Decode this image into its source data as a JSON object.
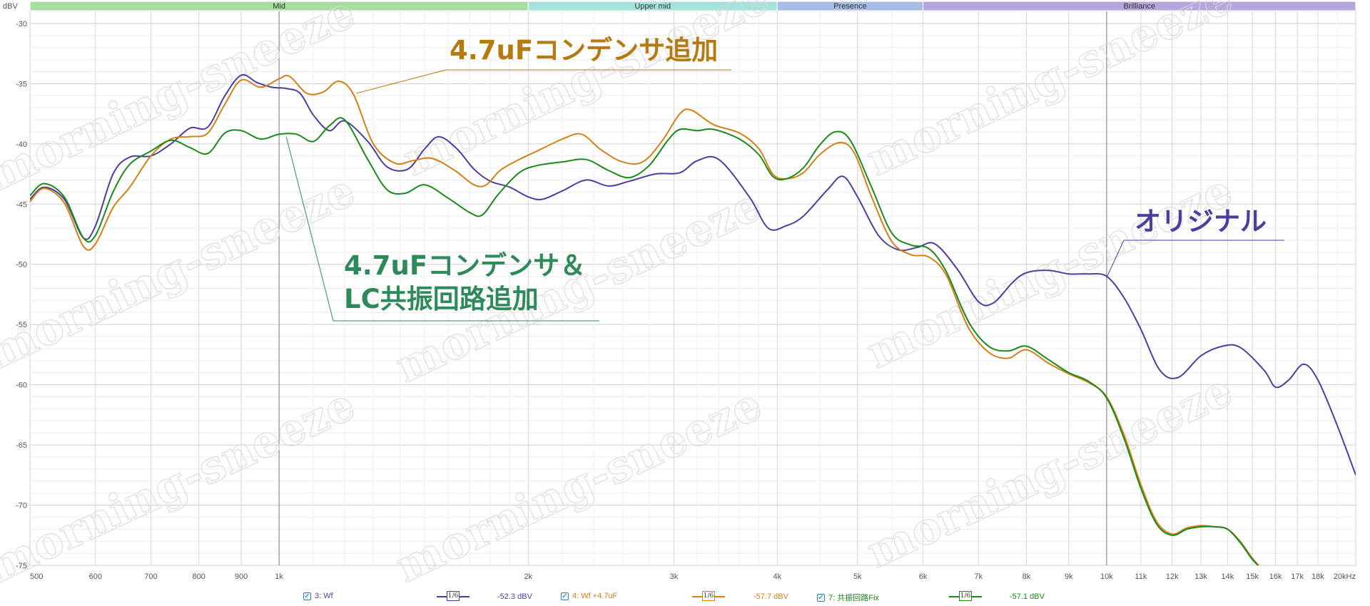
{
  "chart_data": {
    "type": "line",
    "y_unit_label": "dBV",
    "x_scale": "log",
    "xlim": [
      500,
      20000
    ],
    "ylim": [
      -75,
      -29
    ],
    "y_ticks": [
      -30,
      -35,
      -40,
      -45,
      -50,
      -55,
      -60,
      -65,
      -70,
      -75
    ],
    "x_ticks": [
      {
        "v": 500,
        "t": "500"
      },
      {
        "v": 600,
        "t": "600"
      },
      {
        "v": 700,
        "t": "700"
      },
      {
        "v": 800,
        "t": "800"
      },
      {
        "v": 900,
        "t": "900"
      },
      {
        "v": 1000,
        "t": "1k"
      },
      {
        "v": 2000,
        "t": "2k"
      },
      {
        "v": 3000,
        "t": "3k"
      },
      {
        "v": 4000,
        "t": "4k"
      },
      {
        "v": 5000,
        "t": "5k"
      },
      {
        "v": 6000,
        "t": "6k"
      },
      {
        "v": 7000,
        "t": "7k"
      },
      {
        "v": 8000,
        "t": "8k"
      },
      {
        "v": 9000,
        "t": "9k"
      },
      {
        "v": 10000,
        "t": "10k"
      },
      {
        "v": 11000,
        "t": "11k"
      },
      {
        "v": 12000,
        "t": "12k"
      },
      {
        "v": 13000,
        "t": "13k"
      },
      {
        "v": 14000,
        "t": "14k"
      },
      {
        "v": 15000,
        "t": "15k"
      },
      {
        "v": 16000,
        "t": "16k"
      },
      {
        "v": 17000,
        "t": "17k"
      },
      {
        "v": 18000,
        "t": "18k"
      },
      {
        "v": 20000,
        "t": "20kHz"
      }
    ],
    "bands": [
      {
        "label": "Mid",
        "from": 500,
        "to": 2000,
        "color": "#a8dea0"
      },
      {
        "label": "Upper mid",
        "from": 2000,
        "to": 4000,
        "color": "#a4e3dc"
      },
      {
        "label": "Presence",
        "from": 4000,
        "to": 6000,
        "color": "#a9bce3"
      },
      {
        "label": "Brilliance",
        "from": 6000,
        "to": 20000,
        "color": "#b7a6d9"
      }
    ],
    "grid": true,
    "series": [
      {
        "name": "3: Wf",
        "color": "#4a3f9f",
        "points": [
          [
            500,
            -44.6
          ],
          [
            520,
            -43.6
          ],
          [
            550,
            -44.6
          ],
          [
            580,
            -47.8
          ],
          [
            600,
            -46.8
          ],
          [
            630,
            -42.5
          ],
          [
            660,
            -41.1
          ],
          [
            700,
            -41.0
          ],
          [
            740,
            -40.0
          ],
          [
            780,
            -38.7
          ],
          [
            820,
            -38.6
          ],
          [
            860,
            -36.0
          ],
          [
            900,
            -34.3
          ],
          [
            940,
            -34.9
          ],
          [
            980,
            -35.3
          ],
          [
            1020,
            -35.4
          ],
          [
            1060,
            -35.8
          ],
          [
            1100,
            -37.6
          ],
          [
            1150,
            -38.9
          ],
          [
            1200,
            -38.1
          ],
          [
            1280,
            -39.8
          ],
          [
            1350,
            -41.9
          ],
          [
            1430,
            -42.1
          ],
          [
            1500,
            -40.4
          ],
          [
            1560,
            -39.4
          ],
          [
            1640,
            -40.4
          ],
          [
            1720,
            -42.1
          ],
          [
            1800,
            -43.1
          ],
          [
            1900,
            -43.6
          ],
          [
            2000,
            -44.4
          ],
          [
            2080,
            -44.6
          ],
          [
            2200,
            -43.9
          ],
          [
            2350,
            -43.0
          ],
          [
            2500,
            -43.5
          ],
          [
            2650,
            -43.1
          ],
          [
            2850,
            -42.5
          ],
          [
            3050,
            -42.4
          ],
          [
            3200,
            -41.4
          ],
          [
            3400,
            -41.3
          ],
          [
            3700,
            -44.4
          ],
          [
            3900,
            -47.0
          ],
          [
            4100,
            -46.8
          ],
          [
            4300,
            -46.0
          ],
          [
            4600,
            -43.8
          ],
          [
            4800,
            -42.7
          ],
          [
            5000,
            -44.4
          ],
          [
            5300,
            -47.6
          ],
          [
            5600,
            -48.8
          ],
          [
            5900,
            -48.6
          ],
          [
            6200,
            -48.3
          ],
          [
            6600,
            -50.4
          ],
          [
            7000,
            -53.1
          ],
          [
            7300,
            -53.2
          ],
          [
            7700,
            -51.5
          ],
          [
            8000,
            -50.7
          ],
          [
            8500,
            -50.5
          ],
          [
            9000,
            -50.8
          ],
          [
            9500,
            -50.8
          ],
          [
            10000,
            -51.0
          ],
          [
            10500,
            -52.8
          ],
          [
            11000,
            -55.4
          ],
          [
            11600,
            -58.8
          ],
          [
            12200,
            -59.4
          ],
          [
            13000,
            -57.6
          ],
          [
            13800,
            -56.8
          ],
          [
            14500,
            -56.9
          ],
          [
            15500,
            -58.8
          ],
          [
            16000,
            -60.2
          ],
          [
            16600,
            -59.6
          ],
          [
            17300,
            -58.3
          ],
          [
            18000,
            -59.6
          ],
          [
            19000,
            -63.4
          ],
          [
            20000,
            -67.5
          ]
        ]
      },
      {
        "name": "4: Wf +4.7uF",
        "color": "#d57f16",
        "points": [
          [
            500,
            -44.8
          ],
          [
            520,
            -43.7
          ],
          [
            550,
            -44.9
          ],
          [
            580,
            -48.5
          ],
          [
            600,
            -48.3
          ],
          [
            630,
            -45.3
          ],
          [
            660,
            -43.6
          ],
          [
            700,
            -41.0
          ],
          [
            740,
            -39.6
          ],
          [
            780,
            -39.4
          ],
          [
            820,
            -39.1
          ],
          [
            860,
            -36.7
          ],
          [
            900,
            -34.7
          ],
          [
            950,
            -35.3
          ],
          [
            1000,
            -34.6
          ],
          [
            1030,
            -34.4
          ],
          [
            1080,
            -35.8
          ],
          [
            1130,
            -35.7
          ],
          [
            1180,
            -34.8
          ],
          [
            1230,
            -35.9
          ],
          [
            1300,
            -40.0
          ],
          [
            1380,
            -41.6
          ],
          [
            1450,
            -41.4
          ],
          [
            1530,
            -41.2
          ],
          [
            1630,
            -42.2
          ],
          [
            1720,
            -43.4
          ],
          [
            1780,
            -43.4
          ],
          [
            1850,
            -42.2
          ],
          [
            1950,
            -41.3
          ],
          [
            2050,
            -40.6
          ],
          [
            2200,
            -39.6
          ],
          [
            2320,
            -39.2
          ],
          [
            2450,
            -40.5
          ],
          [
            2600,
            -41.5
          ],
          [
            2750,
            -41.5
          ],
          [
            2900,
            -39.8
          ],
          [
            3050,
            -37.5
          ],
          [
            3150,
            -37.2
          ],
          [
            3350,
            -38.4
          ],
          [
            3600,
            -39.1
          ],
          [
            3800,
            -40.4
          ],
          [
            3950,
            -42.5
          ],
          [
            4100,
            -42.9
          ],
          [
            4300,
            -42.4
          ],
          [
            4500,
            -40.9
          ],
          [
            4750,
            -39.9
          ],
          [
            4950,
            -40.7
          ],
          [
            5200,
            -44.4
          ],
          [
            5500,
            -48.1
          ],
          [
            5800,
            -49.2
          ],
          [
            6100,
            -49.4
          ],
          [
            6400,
            -50.9
          ],
          [
            6800,
            -55.2
          ],
          [
            7200,
            -57.3
          ],
          [
            7600,
            -57.8
          ],
          [
            8000,
            -57.1
          ],
          [
            8500,
            -58.2
          ],
          [
            9000,
            -59.1
          ],
          [
            9500,
            -59.8
          ],
          [
            10000,
            -61.0
          ],
          [
            10500,
            -64.2
          ],
          [
            11000,
            -68.3
          ],
          [
            11500,
            -71.4
          ],
          [
            12000,
            -72.4
          ],
          [
            12500,
            -71.9
          ],
          [
            13000,
            -71.7
          ],
          [
            13500,
            -71.8
          ],
          [
            14000,
            -72.0
          ],
          [
            14500,
            -73.0
          ],
          [
            15000,
            -74.4
          ],
          [
            15400,
            -75.3
          ]
        ]
      },
      {
        "name": "7: 共振回路Fix",
        "color": "#1a8a1a",
        "points": [
          [
            500,
            -44.3
          ],
          [
            520,
            -43.3
          ],
          [
            550,
            -44.4
          ],
          [
            580,
            -47.8
          ],
          [
            600,
            -47.6
          ],
          [
            630,
            -44.0
          ],
          [
            660,
            -41.7
          ],
          [
            700,
            -40.6
          ],
          [
            740,
            -39.7
          ],
          [
            780,
            -40.3
          ],
          [
            820,
            -40.8
          ],
          [
            860,
            -39.1
          ],
          [
            900,
            -38.9
          ],
          [
            950,
            -39.6
          ],
          [
            1000,
            -39.2
          ],
          [
            1050,
            -39.2
          ],
          [
            1100,
            -39.8
          ],
          [
            1150,
            -38.5
          ],
          [
            1200,
            -38.0
          ],
          [
            1280,
            -41.3
          ],
          [
            1350,
            -43.8
          ],
          [
            1420,
            -44.1
          ],
          [
            1500,
            -43.4
          ],
          [
            1600,
            -44.5
          ],
          [
            1700,
            -45.7
          ],
          [
            1760,
            -45.9
          ],
          [
            1840,
            -44.2
          ],
          [
            1950,
            -42.4
          ],
          [
            2050,
            -41.8
          ],
          [
            2200,
            -41.5
          ],
          [
            2350,
            -41.3
          ],
          [
            2500,
            -42.2
          ],
          [
            2650,
            -42.8
          ],
          [
            2800,
            -41.8
          ],
          [
            2950,
            -39.7
          ],
          [
            3050,
            -38.8
          ],
          [
            3200,
            -38.9
          ],
          [
            3350,
            -38.8
          ],
          [
            3600,
            -39.6
          ],
          [
            3800,
            -40.9
          ],
          [
            3950,
            -42.7
          ],
          [
            4100,
            -42.9
          ],
          [
            4300,
            -42.0
          ],
          [
            4500,
            -40.1
          ],
          [
            4700,
            -39.0
          ],
          [
            4900,
            -39.7
          ],
          [
            5200,
            -43.6
          ],
          [
            5500,
            -47.4
          ],
          [
            5800,
            -48.4
          ],
          [
            6100,
            -48.7
          ],
          [
            6400,
            -50.6
          ],
          [
            6800,
            -54.7
          ],
          [
            7200,
            -56.8
          ],
          [
            7600,
            -57.2
          ],
          [
            8000,
            -56.8
          ],
          [
            8500,
            -57.9
          ],
          [
            9000,
            -59.0
          ],
          [
            9500,
            -59.7
          ],
          [
            10000,
            -61.1
          ],
          [
            10500,
            -64.5
          ],
          [
            11000,
            -68.6
          ],
          [
            11500,
            -71.6
          ],
          [
            12000,
            -72.5
          ],
          [
            12500,
            -72.0
          ],
          [
            13000,
            -71.8
          ],
          [
            13500,
            -71.8
          ],
          [
            14000,
            -72.0
          ],
          [
            14500,
            -73.1
          ],
          [
            15000,
            -74.5
          ],
          [
            15400,
            -75.3
          ]
        ]
      }
    ],
    "annotations": [
      {
        "id": "orig",
        "lines": [
          "オリジナル"
        ],
        "color": "#4a3f9f",
        "freq": 10000,
        "db": -51.1
      },
      {
        "id": "cap",
        "lines": [
          "4.7uFコンデンサ追加"
        ],
        "color": "#b57a10",
        "freq": 1240,
        "db": -35.8
      },
      {
        "id": "lc",
        "lines": [
          "4.7uFコンデンサ＆",
          "LC共振回路追加"
        ],
        "color": "#2e8a5a",
        "freq": 1020,
        "db": -39.4
      }
    ],
    "watermark": "morning-sneeze"
  },
  "legend": {
    "items": [
      {
        "label": "3: Wf",
        "level": "-52.3 dBV",
        "color": "#4a3f9f",
        "smoothing": "1/6"
      },
      {
        "label": "4: Wf +4.7uF",
        "level": "-57.7 dBV",
        "color": "#d57f16",
        "smoothing": "1/6"
      },
      {
        "label": "7: 共振回路Fix",
        "level": "-57.1 dBV",
        "color": "#1a8a1a",
        "smoothing": "1/6"
      }
    ]
  }
}
